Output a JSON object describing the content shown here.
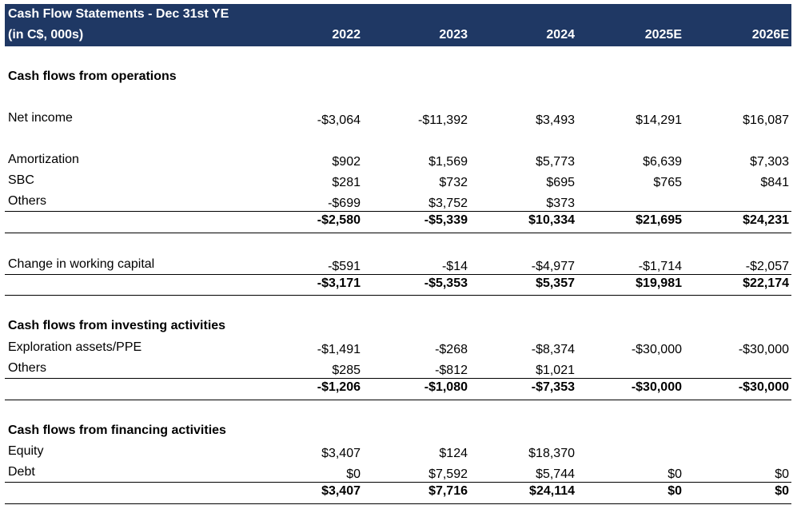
{
  "title": "Cash Flow Statements - Dec 31st YE",
  "subtitle": "(in C$, 000s)",
  "years": [
    "2022",
    "2023",
    "2024",
    "2025E",
    "2026E"
  ],
  "sections": {
    "operations": {
      "header": "Cash flows from operations",
      "net_income": {
        "label": "Net income",
        "values": [
          "-$3,064",
          "-$11,392",
          "$3,493",
          "$14,291",
          "$16,087"
        ]
      },
      "amortization": {
        "label": "Amortization",
        "values": [
          "$902",
          "$1,569",
          "$5,773",
          "$6,639",
          "$7,303"
        ]
      },
      "sbc": {
        "label": "SBC",
        "values": [
          "$281",
          "$732",
          "$695",
          "$765",
          "$841"
        ]
      },
      "others": {
        "label": "Others",
        "values": [
          "-$699",
          "$3,752",
          "$373",
          "",
          ""
        ]
      },
      "subtotal": {
        "values": [
          "-$2,580",
          "-$5,339",
          "$10,334",
          "$21,695",
          "$24,231"
        ]
      },
      "working_capital": {
        "label": "Change in working capital",
        "values": [
          "-$591",
          "-$14",
          "-$4,977",
          "-$1,714",
          "-$2,057"
        ]
      },
      "total": {
        "values": [
          "-$3,171",
          "-$5,353",
          "$5,357",
          "$19,981",
          "$22,174"
        ]
      }
    },
    "investing": {
      "header": "Cash flows from investing activities",
      "exploration": {
        "label": "Exploration assets/PPE",
        "values": [
          "-$1,491",
          "-$268",
          "-$8,374",
          "-$30,000",
          "-$30,000"
        ]
      },
      "others": {
        "label": "Others",
        "values": [
          "$285",
          "-$812",
          "$1,021",
          "",
          ""
        ]
      },
      "total": {
        "values": [
          "-$1,206",
          "-$1,080",
          "-$7,353",
          "-$30,000",
          "-$30,000"
        ]
      }
    },
    "financing": {
      "header": "Cash flows from financing activities",
      "equity": {
        "label": "Equity",
        "values": [
          "$3,407",
          "$124",
          "$18,370",
          "",
          ""
        ]
      },
      "debt": {
        "label": "Debt",
        "values": [
          "$0",
          "$7,592",
          "$5,744",
          "$0",
          "$0"
        ]
      },
      "total": {
        "values": [
          "$3,407",
          "$7,716",
          "$24,114",
          "$0",
          "$0"
        ]
      }
    }
  }
}
